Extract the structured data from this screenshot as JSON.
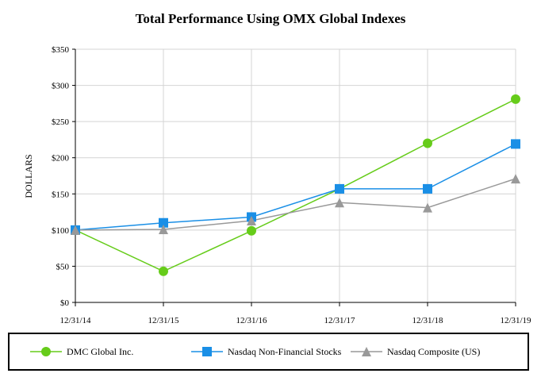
{
  "chart_data": {
    "type": "line",
    "title": "Total Performance Using OMX Global Indexes",
    "ylabel": "DOLLARS",
    "xlabel": "",
    "categories": [
      "12/31/14",
      "12/31/15",
      "12/31/16",
      "12/31/17",
      "12/31/18",
      "12/31/19"
    ],
    "ylim": [
      0,
      350
    ],
    "yticks": [
      0,
      50,
      100,
      150,
      200,
      250,
      300,
      350
    ],
    "ytick_labels": [
      "$0",
      "$50",
      "$100",
      "$150",
      "$200",
      "$250",
      "$300",
      "$350"
    ],
    "grid": "vertical and horizontal",
    "legend_position": "bottom",
    "series": [
      {
        "name": "DMC Global Inc.",
        "values": [
          100,
          43,
          99,
          157,
          220,
          281
        ],
        "color": "#66cc1a",
        "marker": "circle"
      },
      {
        "name": "Nasdaq Non-Financial Stocks",
        "values": [
          100,
          110,
          118,
          157,
          157,
          219
        ],
        "color": "#1a8fe6",
        "marker": "square"
      },
      {
        "name": "Nasdaq Composite (US)",
        "values": [
          100,
          101,
          113,
          138,
          131,
          171
        ],
        "color": "#999999",
        "marker": "triangle"
      }
    ]
  }
}
